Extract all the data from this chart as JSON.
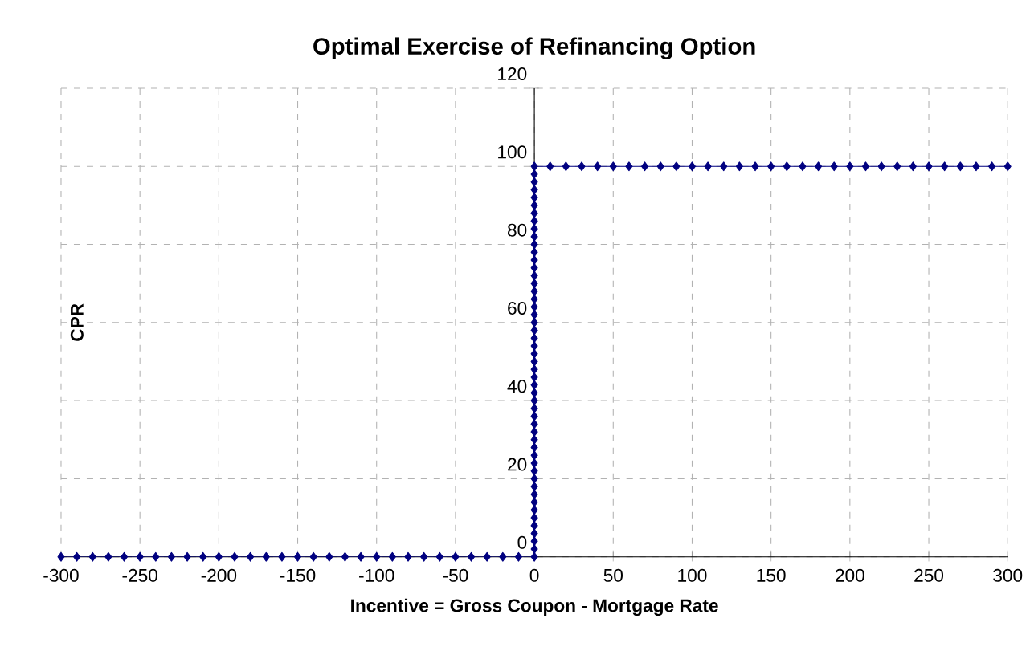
{
  "chart_data": {
    "type": "line",
    "title": "Optimal Exercise of Refinancing Option",
    "xlabel": "Incentive = Gross Coupon - Mortgage Rate",
    "ylabel": "CPR",
    "x": [
      -300,
      -290,
      -280,
      -270,
      -260,
      -250,
      -240,
      -230,
      -220,
      -210,
      -200,
      -190,
      -180,
      -170,
      -160,
      -150,
      -140,
      -130,
      -120,
      -110,
      -100,
      -90,
      -80,
      -70,
      -60,
      -50,
      -40,
      -30,
      -20,
      -10,
      0,
      0,
      0,
      0,
      0,
      0,
      0,
      0,
      0,
      0,
      0,
      0,
      0,
      0,
      0,
      0,
      0,
      0,
      0,
      0,
      0,
      0,
      0,
      0,
      0,
      0,
      0,
      0,
      0,
      0,
      0,
      0,
      0,
      0,
      0,
      0,
      0,
      0,
      0,
      0,
      0,
      0,
      0,
      0,
      0,
      0,
      0,
      0,
      0,
      0,
      0,
      10,
      20,
      30,
      40,
      50,
      60,
      70,
      80,
      90,
      100,
      110,
      120,
      130,
      140,
      150,
      160,
      170,
      180,
      190,
      200,
      210,
      220,
      230,
      240,
      250,
      260,
      270,
      280,
      290,
      300
    ],
    "values": [
      0,
      0,
      0,
      0,
      0,
      0,
      0,
      0,
      0,
      0,
      0,
      0,
      0,
      0,
      0,
      0,
      0,
      0,
      0,
      0,
      0,
      0,
      0,
      0,
      0,
      0,
      0,
      0,
      0,
      0,
      0,
      2,
      4,
      6,
      8,
      10,
      12,
      14,
      16,
      18,
      20,
      22,
      24,
      26,
      28,
      30,
      32,
      34,
      36,
      38,
      40,
      42,
      44,
      46,
      48,
      50,
      52,
      54,
      56,
      58,
      60,
      62,
      64,
      66,
      68,
      70,
      72,
      74,
      76,
      78,
      80,
      82,
      84,
      86,
      88,
      90,
      92,
      94,
      96,
      98,
      100,
      100,
      100,
      100,
      100,
      100,
      100,
      100,
      100,
      100,
      100,
      100,
      100,
      100,
      100,
      100,
      100,
      100,
      100,
      100,
      100,
      100,
      100,
      100,
      100,
      100,
      100,
      100,
      100,
      100,
      100
    ],
    "color": "#000080",
    "marker": "diamond",
    "grid": true,
    "xlim": [
      -300,
      300
    ],
    "ylim": [
      0,
      120
    ],
    "xticks": [
      -300,
      -250,
      -200,
      -150,
      -100,
      -50,
      0,
      50,
      100,
      150,
      200,
      250,
      300
    ],
    "yticks": [
      0,
      20,
      40,
      60,
      80,
      100,
      120
    ]
  }
}
